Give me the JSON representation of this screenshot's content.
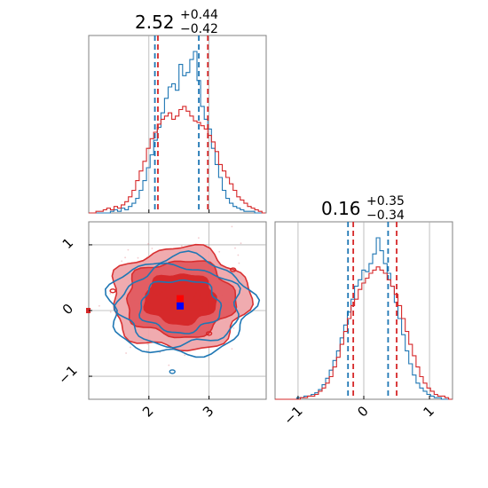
{
  "chart_data": {
    "type": "corner",
    "colors": {
      "blue": "#1f77b4",
      "red": "#d62728",
      "grid": "#b0b0b0",
      "frame": "#808080"
    },
    "panels": {
      "hist_x": {
        "type": "step-histogram",
        "title_value": "2.52",
        "title_plus": "+0.44",
        "title_minus": "−0.42",
        "xlim": [
          1.0,
          3.95
        ],
        "ylim": [
          0,
          1
        ],
        "x_ticks": [
          2,
          3
        ],
        "bin_edges_start": 1.0,
        "bin_width": 0.06,
        "series": [
          {
            "color": "blue",
            "quantiles": [
              2.1,
              2.83
            ],
            "values": [
              0,
              0,
              0,
              0,
              0,
              0,
              0.01,
              0.02,
              0.01,
              0.03,
              0.02,
              0.04,
              0.06,
              0.09,
              0.14,
              0.2,
              0.28,
              0.36,
              0.45,
              0.53,
              0.62,
              0.71,
              0.78,
              0.8,
              0.76,
              0.92,
              0.85,
              0.87,
              0.95,
              1.0,
              0.82,
              0.66,
              0.58,
              0.52,
              0.4,
              0.3,
              0.22,
              0.14,
              0.09,
              0.06,
              0.04,
              0.03,
              0.02,
              0.01,
              0.01,
              0.01,
              0,
              0,
              0
            ]
          },
          {
            "color": "red",
            "quantiles": [
              2.15,
              2.98
            ],
            "values": [
              0,
              0,
              0.01,
              0.01,
              0.02,
              0.03,
              0.02,
              0.04,
              0.03,
              0.05,
              0.07,
              0.1,
              0.14,
              0.2,
              0.26,
              0.32,
              0.4,
              0.46,
              0.5,
              0.55,
              0.58,
              0.6,
              0.62,
              0.58,
              0.6,
              0.64,
              0.66,
              0.63,
              0.6,
              0.57,
              0.56,
              0.54,
              0.52,
              0.48,
              0.44,
              0.38,
              0.3,
              0.26,
              0.22,
              0.18,
              0.14,
              0.1,
              0.08,
              0.06,
              0.04,
              0.03,
              0.02,
              0.01,
              0
            ]
          }
        ]
      },
      "contour": {
        "type": "2d-density-contour",
        "xlim": [
          1.0,
          3.95
        ],
        "ylim": [
          -1.35,
          1.35
        ],
        "x_ticks": [
          2,
          3
        ],
        "y_ticks": [
          -1,
          0,
          1
        ],
        "blue_center": [
          2.52,
          0.07
        ],
        "red_center": [
          2.52,
          0.18
        ],
        "blue_rings": [
          [
            0.7,
            0.4
          ],
          [
            1.05,
            0.6
          ],
          [
            1.25,
            0.75
          ]
        ],
        "red_rings": [
          [
            0.62,
            0.38
          ],
          [
            0.95,
            0.58
          ],
          [
            1.2,
            0.78
          ]
        ]
      },
      "hist_y": {
        "type": "step-histogram",
        "title_value": "0.16",
        "title_plus": "+0.35",
        "title_minus": "−0.34",
        "xlim": [
          -1.35,
          1.35
        ],
        "ylim": [
          0,
          1
        ],
        "x_ticks": [
          -1,
          0,
          1
        ],
        "bin_edges_start": -1.35,
        "bin_width": 0.055,
        "series": [
          {
            "color": "blue",
            "quantiles": [
              -0.24,
              0.37
            ],
            "values": [
              0,
              0,
              0,
              0,
              0,
              0,
              0.01,
              0.01,
              0.02,
              0.02,
              0.03,
              0.04,
              0.06,
              0.09,
              0.13,
              0.18,
              0.24,
              0.3,
              0.38,
              0.46,
              0.54,
              0.62,
              0.7,
              0.74,
              0.8,
              0.79,
              0.84,
              0.9,
              1.0,
              0.92,
              0.84,
              0.78,
              0.7,
              0.6,
              0.5,
              0.4,
              0.3,
              0.22,
              0.15,
              0.1,
              0.07,
              0.05,
              0.03,
              0.02,
              0.01,
              0.01,
              0,
              0,
              0
            ]
          },
          {
            "color": "red",
            "quantiles": [
              -0.16,
              0.5
            ],
            "values": [
              0,
              0,
              0,
              0,
              0,
              0,
              0,
              0.01,
              0.01,
              0.02,
              0.02,
              0.03,
              0.05,
              0.07,
              0.1,
              0.14,
              0.2,
              0.26,
              0.34,
              0.42,
              0.5,
              0.58,
              0.62,
              0.68,
              0.72,
              0.75,
              0.78,
              0.8,
              0.82,
              0.8,
              0.78,
              0.74,
              0.7,
              0.65,
              0.58,
              0.5,
              0.42,
              0.34,
              0.27,
              0.2,
              0.14,
              0.1,
              0.07,
              0.05,
              0.03,
              0.02,
              0.02,
              0.01,
              0
            ]
          }
        ]
      }
    }
  }
}
